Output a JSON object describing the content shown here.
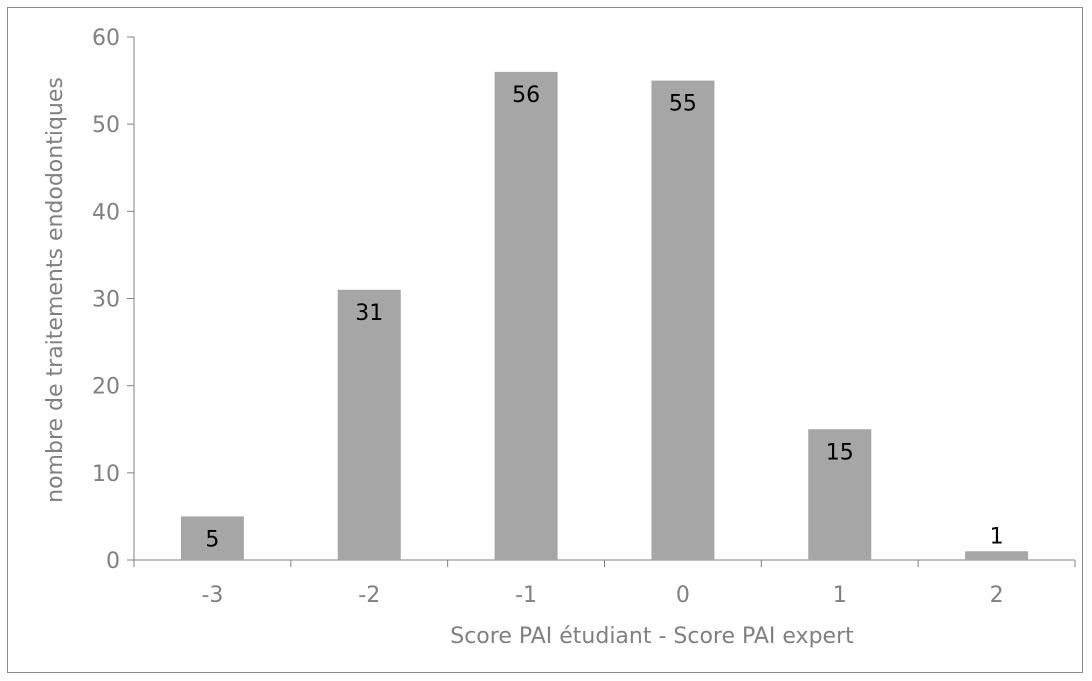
{
  "chart_data": {
    "type": "bar",
    "categories": [
      "-3",
      "-2",
      "-1",
      "0",
      "1",
      "2"
    ],
    "values": [
      5,
      31,
      56,
      55,
      15,
      1
    ],
    "data_labels": [
      "5",
      "31",
      "56",
      "55",
      "15",
      "1"
    ],
    "title": "",
    "xlabel": "Score PAI étudiant - Score PAI expert",
    "ylabel": "nombre de traitements endodontiques",
    "ylim": [
      0,
      60
    ],
    "yticks": [
      "0",
      "10",
      "20",
      "30",
      "40",
      "50",
      "60"
    ],
    "grid": false,
    "legend": "none",
    "colors": {
      "bar": "#a6a6a6",
      "axis": "#808080",
      "text": "#808080",
      "label": "#000000"
    }
  }
}
